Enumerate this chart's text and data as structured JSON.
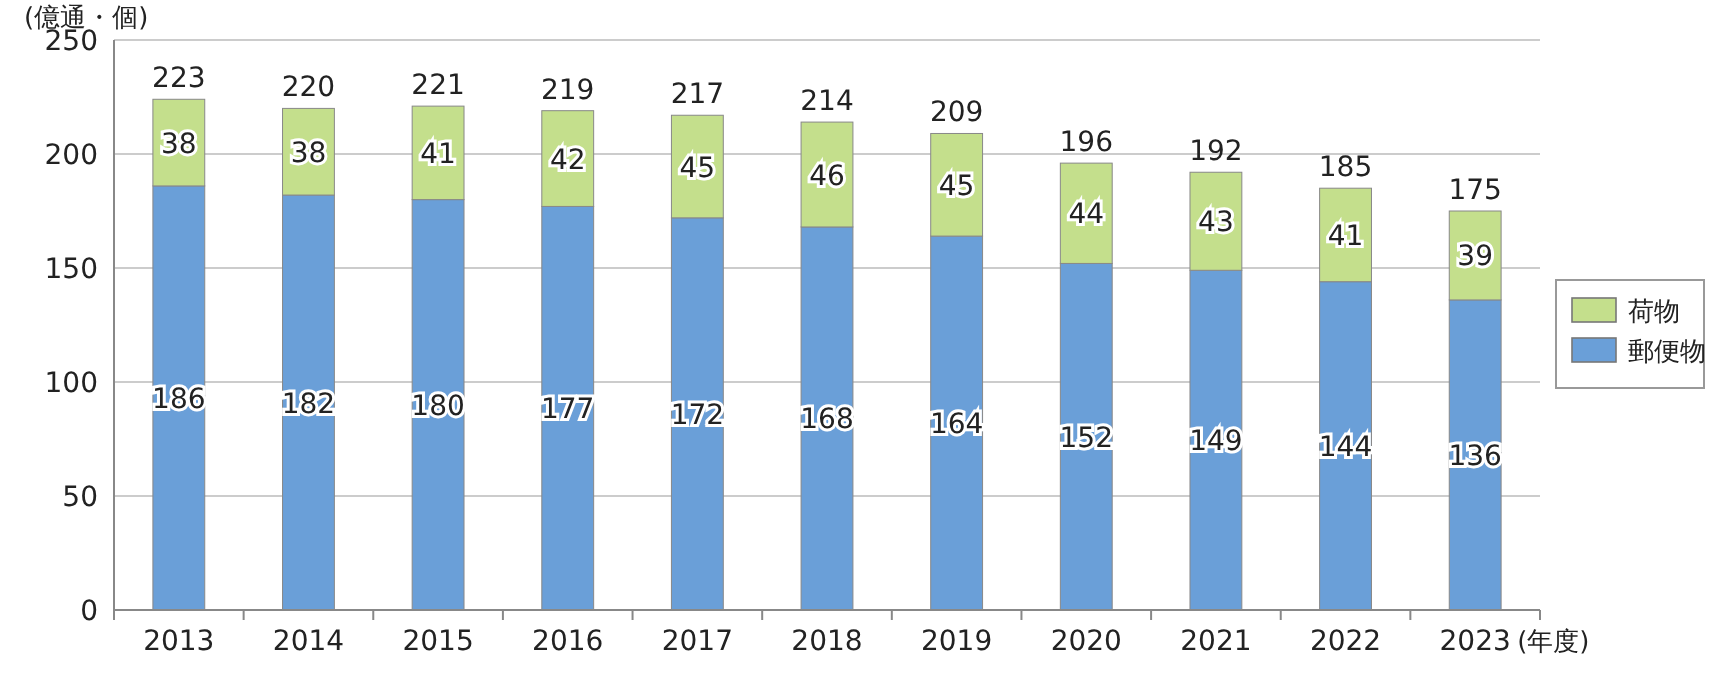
{
  "chart_data": {
    "type": "bar",
    "stacked": true,
    "ylabel": "(億通・個)",
    "xlabel": "(年度)",
    "categories": [
      "2013",
      "2014",
      "2015",
      "2016",
      "2017",
      "2018",
      "2019",
      "2020",
      "2021",
      "2022",
      "2023"
    ],
    "series": [
      {
        "name": "郵便物",
        "color": "#6a9fd8",
        "values": [
          186,
          182,
          180,
          177,
          172,
          168,
          164,
          152,
          149,
          144,
          136
        ]
      },
      {
        "name": "荷物",
        "color": "#c4df8c",
        "values": [
          38,
          38,
          41,
          42,
          45,
          46,
          45,
          44,
          43,
          41,
          39
        ]
      }
    ],
    "totals": [
      "223",
      "220",
      "221",
      "219",
      "217",
      "214",
      "209",
      "196",
      "192",
      "185",
      "175"
    ],
    "data_labels": true,
    "ylim": [
      0,
      250
    ],
    "yticks": [
      0,
      50,
      100,
      150,
      200,
      250
    ],
    "grid": "y",
    "legend": "right"
  }
}
